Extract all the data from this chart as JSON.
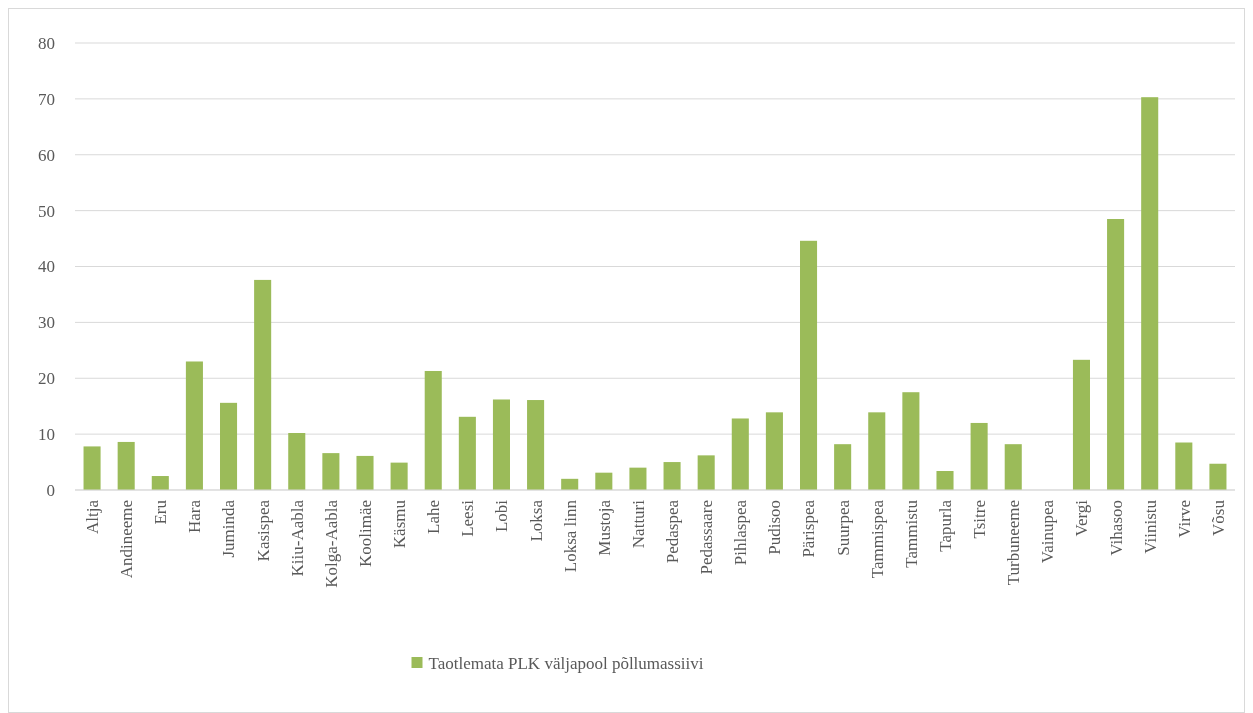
{
  "chart_data": {
    "type": "bar",
    "categories": [
      "Altja",
      "Andineeme",
      "Eru",
      "Hara",
      "Juminda",
      "Kasispea",
      "Kiiu-Aabla",
      "Kolga-Aabla",
      "Koolimäe",
      "Käsmu",
      "Lahe",
      "Leesi",
      "Lobi",
      "Loksa",
      "Loksa linn",
      "Mustoja",
      "Natturi",
      "Pedaspea",
      "Pedassaare",
      "Pihlaspea",
      "Pudisoo",
      "Pärispea",
      "Suurpea",
      "Tammispea",
      "Tammistu",
      "Tapurla",
      "Tsitre",
      "Turbuneeme",
      "Vainupea",
      "Vergi",
      "Vihasoo",
      "Viinistu",
      "Virve",
      "Võsu"
    ],
    "series": [
      {
        "name": "Taotlemata PLK väljapool põllumassiivi",
        "color": "#9bbb59",
        "values": [
          7.8,
          8.6,
          2.5,
          23,
          15.6,
          37.6,
          10.2,
          6.6,
          6.1,
          4.9,
          21.3,
          13.1,
          16.2,
          16.1,
          2.0,
          3.1,
          4.0,
          5.0,
          6.2,
          12.8,
          13.9,
          44.6,
          8.2,
          13.9,
          17.5,
          3.4,
          12.0,
          8.2,
          0,
          23.3,
          48.5,
          70.3,
          8.5,
          4.7
        ]
      }
    ],
    "ylim": [
      0,
      80
    ],
    "yticks": [
      0,
      10,
      20,
      30,
      40,
      50,
      60,
      70,
      80
    ],
    "grid": "y",
    "legend": "bottom"
  }
}
